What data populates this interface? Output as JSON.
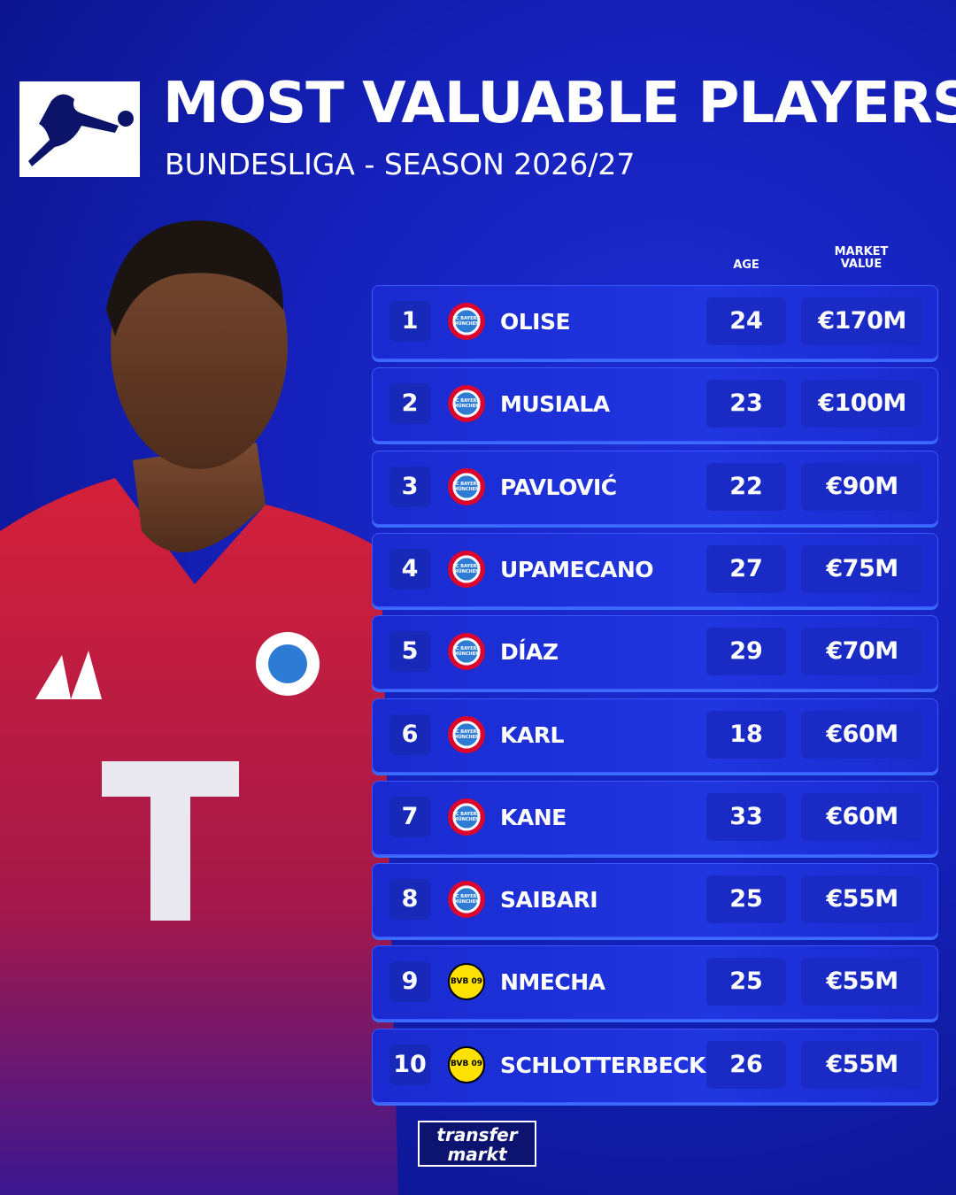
{
  "header": {
    "title": "MOST VALUABLE PLAYERS",
    "subtitle": "BUNDESLIGA - SEASON 2026/27"
  },
  "table": {
    "columns": {
      "age": "AGE",
      "value": "MARKET VALUE"
    },
    "rows": [
      {
        "rank": "1",
        "club": "FC BAYERN MÜNCHEN",
        "name": "OLISE",
        "age": "24",
        "value": "€170M"
      },
      {
        "rank": "2",
        "club": "FC BAYERN MÜNCHEN",
        "name": "MUSIALA",
        "age": "23",
        "value": "€100M"
      },
      {
        "rank": "3",
        "club": "FC BAYERN MÜNCHEN",
        "name": "PAVLOVIĆ",
        "age": "22",
        "value": "€90M"
      },
      {
        "rank": "4",
        "club": "FC BAYERN MÜNCHEN",
        "name": "UPAMECANO",
        "age": "27",
        "value": "€75M"
      },
      {
        "rank": "5",
        "club": "FC BAYERN MÜNCHEN",
        "name": "DÍAZ",
        "age": "29",
        "value": "€70M"
      },
      {
        "rank": "6",
        "club": "FC BAYERN MÜNCHEN",
        "name": "KARL",
        "age": "18",
        "value": "€60M"
      },
      {
        "rank": "7",
        "club": "FC BAYERN MÜNCHEN",
        "name": "KANE",
        "age": "33",
        "value": "€60M"
      },
      {
        "rank": "8",
        "club": "FC BAYERN MÜNCHEN",
        "name": "SAIBARI",
        "age": "25",
        "value": "€55M"
      },
      {
        "rank": "9",
        "club": "BVB 09",
        "name": "NMECHA",
        "age": "25",
        "value": "€55M"
      },
      {
        "rank": "10",
        "club": "BVB 09",
        "name": "SCHLOTTERBECK",
        "age": "26",
        "value": "€55M"
      }
    ]
  },
  "footer": {
    "logo_top": "transfer",
    "logo_bottom": "markt"
  }
}
